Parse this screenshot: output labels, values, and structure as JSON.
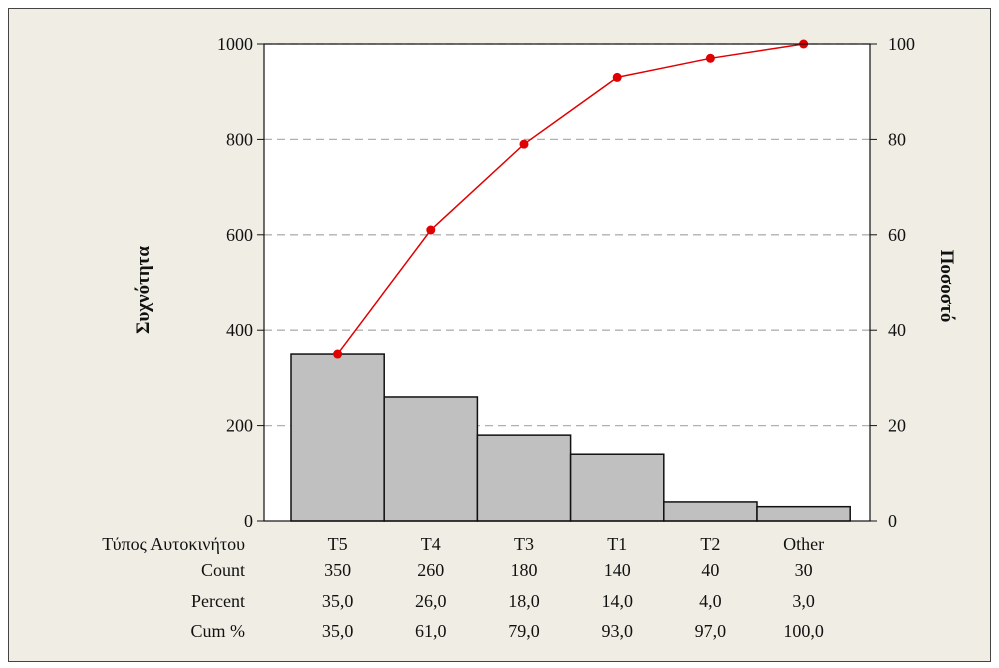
{
  "chart_data": {
    "type": "bar",
    "title": "",
    "categories": [
      "T5",
      "T4",
      "T3",
      "T1",
      "T2",
      "Other"
    ],
    "series": [
      {
        "name": "Count",
        "values": [
          350,
          260,
          180,
          140,
          40,
          30
        ]
      },
      {
        "name": "Cum %",
        "values": [
          35.0,
          61.0,
          79.0,
          93.0,
          97.0,
          100.0
        ]
      }
    ],
    "ylabel": "Συχνότητα",
    "y2label": "Ποσοστό",
    "ylim": [
      0,
      1000
    ],
    "y2lim": [
      0,
      100
    ],
    "yticks": [
      "0",
      "200",
      "400",
      "600",
      "800",
      "1000"
    ],
    "y2ticks": [
      "0",
      "20",
      "40",
      "60",
      "80",
      "100"
    ],
    "grid": true,
    "colors": {
      "bar": "#c0c0c0",
      "line": "#e00000",
      "grid": "#b0b0b0",
      "panel": "#f0ede4"
    },
    "table": {
      "header_label": "Τύπος Αυτοκινήτου",
      "rows": [
        {
          "label": "Count",
          "values": [
            "350",
            "260",
            "180",
            "140",
            "40",
            "30"
          ]
        },
        {
          "label": "Percent",
          "values": [
            "35,0",
            "26,0",
            "18,0",
            "14,0",
            "4,0",
            "3,0"
          ]
        },
        {
          "label": "Cum %",
          "values": [
            "35,0",
            "61,0",
            "79,0",
            "93,0",
            "97,0",
            "100,0"
          ]
        }
      ]
    }
  }
}
